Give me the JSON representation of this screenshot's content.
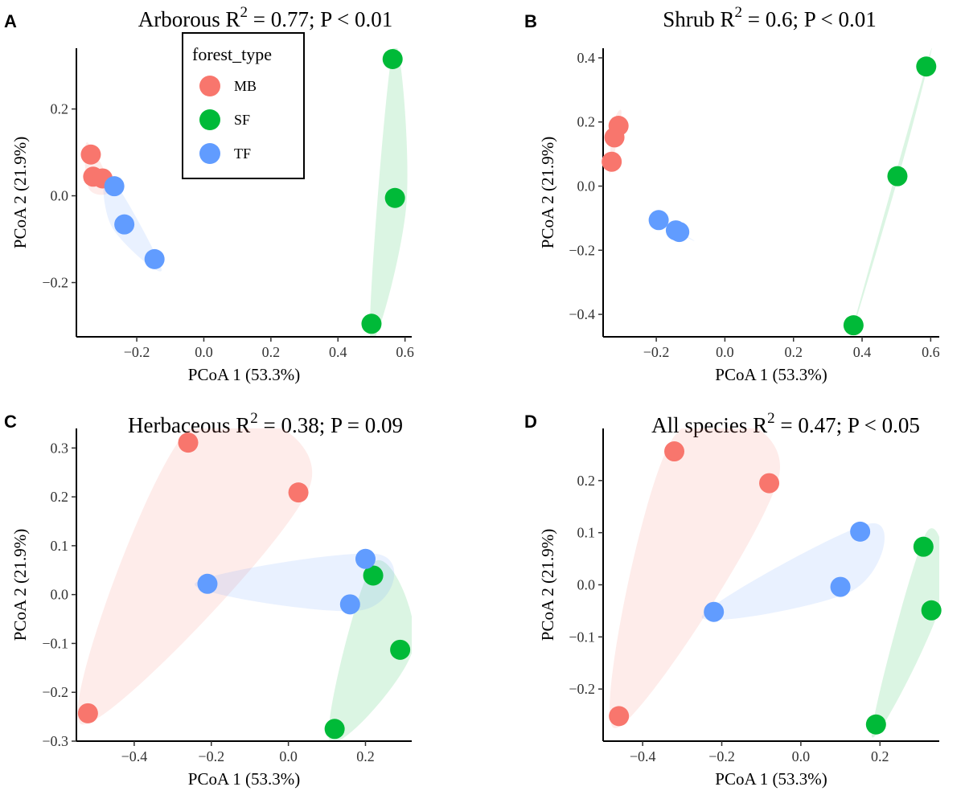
{
  "legend": {
    "title": "forest_type",
    "items": [
      {
        "name": "MB",
        "color": "#F8766D"
      },
      {
        "name": "SF",
        "color": "#00BA38"
      },
      {
        "name": "TF",
        "color": "#619CFF"
      }
    ]
  },
  "chart_data": [
    {
      "type": "scatter",
      "panel": "A",
      "title": {
        "main": "Arborous",
        "r2_label": "R",
        "r2_exp": "2",
        "stats": " = 0.77;  P < 0.01"
      },
      "xlabel": "PCoA 1 (53.3%)",
      "ylabel": "PCoA 2 (21.9%)",
      "xlim": [
        -0.38,
        0.62
      ],
      "ylim": [
        -0.325,
        0.34
      ],
      "xticks": [
        -0.2,
        0.0,
        0.2,
        0.4,
        0.6
      ],
      "xtick_labels": [
        "−0.2",
        "0.0",
        "0.2",
        "0.4",
        "0.6"
      ],
      "yticks": [
        -0.2,
        0.0,
        0.2
      ],
      "ytick_labels": [
        "−0.2",
        "0.0",
        "0.2"
      ],
      "series": [
        {
          "name": "MB",
          "x": [
            -0.337,
            -0.33,
            -0.302
          ],
          "y": [
            0.095,
            0.044,
            0.04
          ]
        },
        {
          "name": "SF",
          "x": [
            0.563,
            0.57,
            0.5
          ],
          "y": [
            0.315,
            -0.005,
            -0.295
          ]
        },
        {
          "name": "TF",
          "x": [
            -0.267,
            -0.237,
            -0.147
          ],
          "y": [
            0.022,
            -0.066,
            -0.146
          ]
        }
      ]
    },
    {
      "type": "scatter",
      "panel": "B",
      "title": {
        "main": "Shrub",
        "r2_label": "R",
        "r2_exp": "2",
        "stats": " = 0.6;  P < 0.01"
      },
      "xlabel": "PCoA 1 (53.3%)",
      "ylabel": "PCoA 2 (21.9%)",
      "xlim": [
        -0.355,
        0.625
      ],
      "ylim": [
        -0.47,
        0.43
      ],
      "xticks": [
        -0.2,
        0.0,
        0.2,
        0.4,
        0.6
      ],
      "xtick_labels": [
        "−0.2",
        "0.0",
        "0.2",
        "0.4",
        "0.6"
      ],
      "yticks": [
        -0.4,
        -0.2,
        0.0,
        0.2,
        0.4
      ],
      "ytick_labels": [
        "−0.4",
        "−0.2",
        "0.0",
        "0.2",
        "0.4"
      ],
      "series": [
        {
          "name": "MB",
          "x": [
            -0.31,
            -0.322,
            -0.33
          ],
          "y": [
            0.188,
            0.152,
            0.076
          ]
        },
        {
          "name": "SF",
          "x": [
            0.587,
            0.503,
            0.375
          ],
          "y": [
            0.373,
            0.031,
            -0.434
          ]
        },
        {
          "name": "TF",
          "x": [
            -0.193,
            -0.143,
            -0.133
          ],
          "y": [
            -0.106,
            -0.138,
            -0.143
          ]
        }
      ]
    },
    {
      "type": "scatter",
      "panel": "C",
      "title": {
        "main": "Herbaceous   ",
        "r2_label": "R",
        "r2_exp": "2",
        "stats": " = 0.38;  P = 0.09"
      },
      "xlabel": "PCoA 1 (53.3%)",
      "ylabel": "PCoA 2 (21.9%)",
      "xlim": [
        -0.55,
        0.32
      ],
      "ylim": [
        -0.3,
        0.34
      ],
      "xticks": [
        -0.4,
        -0.2,
        0.0,
        0.2
      ],
      "xtick_labels": [
        "−0.4",
        "−0.2",
        "0.0",
        "0.2"
      ],
      "yticks": [
        -0.3,
        -0.2,
        -0.1,
        0.0,
        0.1,
        0.2,
        0.3
      ],
      "ytick_labels": [
        "−0.3",
        "−0.2",
        "−0.1",
        "0.0",
        "0.1",
        "0.2",
        "0.3"
      ],
      "series": [
        {
          "name": "MB",
          "x": [
            -0.26,
            0.026,
            -0.52
          ],
          "y": [
            0.311,
            0.209,
            -0.243
          ]
        },
        {
          "name": "SF",
          "x": [
            0.22,
            0.29,
            0.12
          ],
          "y": [
            0.039,
            -0.113,
            -0.275
          ]
        },
        {
          "name": "TF",
          "x": [
            -0.21,
            0.2,
            0.16
          ],
          "y": [
            0.022,
            0.073,
            -0.02
          ]
        }
      ]
    },
    {
      "type": "scatter",
      "panel": "D",
      "title": {
        "main": "All species",
        "r2_label": "R",
        "r2_exp": "2",
        "stats": " = 0.47;  P < 0.05"
      },
      "xlabel": "PCoA 1 (53.3%)",
      "ylabel": "PCoA 2 (21.9%)",
      "xlim": [
        -0.5,
        0.35
      ],
      "ylim": [
        -0.3,
        0.3
      ],
      "xticks": [
        -0.4,
        -0.2,
        0.0,
        0.2
      ],
      "xtick_labels": [
        "−0.4",
        "−0.2",
        "0.0",
        "0.2"
      ],
      "yticks": [
        -0.2,
        -0.1,
        0.0,
        0.1,
        0.2
      ],
      "ytick_labels": [
        "−0.2",
        "−0.1",
        "0.0",
        "0.1",
        "0.2"
      ],
      "series": [
        {
          "name": "MB",
          "x": [
            -0.32,
            -0.08,
            -0.46
          ],
          "y": [
            0.256,
            0.195,
            -0.252
          ]
        },
        {
          "name": "SF",
          "x": [
            0.31,
            0.33,
            0.19
          ],
          "y": [
            0.073,
            -0.049,
            -0.268
          ]
        },
        {
          "name": "TF",
          "x": [
            0.15,
            0.1,
            -0.22
          ],
          "y": [
            0.102,
            -0.004,
            -0.052
          ]
        }
      ]
    }
  ]
}
